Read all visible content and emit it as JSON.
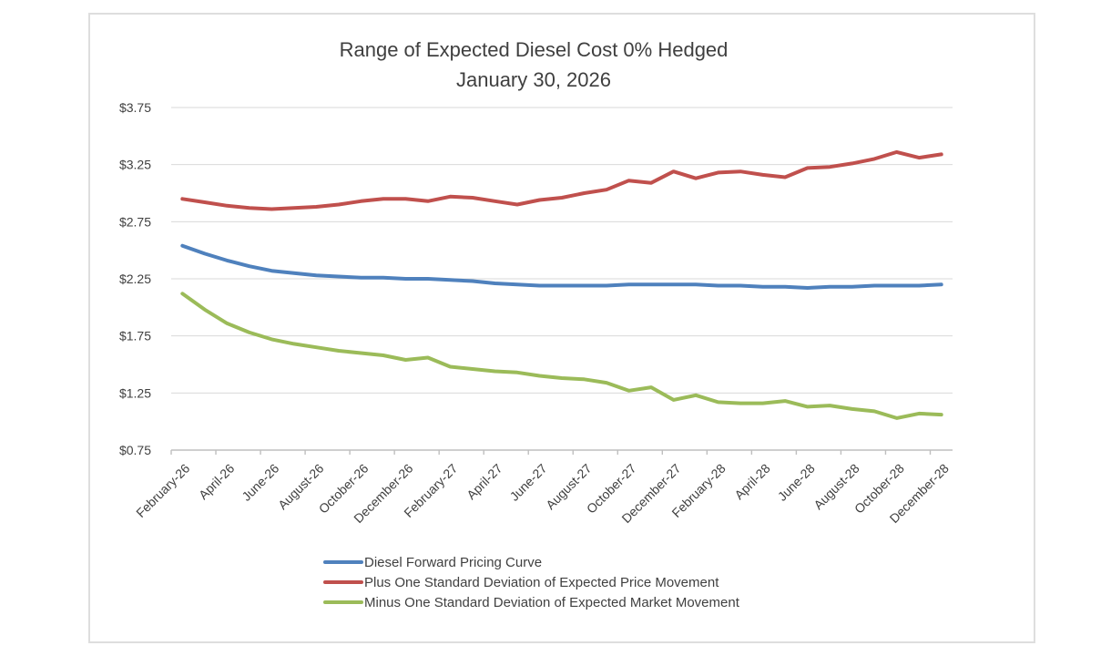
{
  "page": {
    "background_color": "#ffffff",
    "card_border_color": "#dedede"
  },
  "chart_data": {
    "type": "line",
    "title": "Range of Expected Diesel Cost 0% Hedged",
    "subtitle": "January 30, 2026",
    "grid": "horizontal",
    "legend_position": "bottom",
    "colors": {
      "grid": "#d9d9d9",
      "axis": "#bfbfbf",
      "text": "#404040"
    },
    "y_axis": {
      "tick_labels": [
        "$3.75",
        "$3.25",
        "$2.75",
        "$2.25",
        "$1.75",
        "$1.25",
        "$0.75"
      ],
      "tick_values": [
        3.75,
        3.25,
        2.75,
        2.25,
        1.75,
        1.25,
        0.75
      ],
      "min": 0.75,
      "max": 3.75
    },
    "x_axis": {
      "tick_labels": [
        "February-26",
        "April-26",
        "June-26",
        "August-26",
        "October-26",
        "December-26",
        "February-27",
        "April-27",
        "June-27",
        "August-27",
        "October-27",
        "December-27",
        "February-28",
        "April-28",
        "June-28",
        "August-28",
        "October-28",
        "December-28"
      ],
      "points_per_label": 2,
      "total_points": 35
    },
    "series": [
      {
        "name": "Diesel Forward Pricing Curve",
        "color": "#4F81BD",
        "values": [
          2.54,
          2.47,
          2.41,
          2.36,
          2.32,
          2.3,
          2.28,
          2.27,
          2.26,
          2.26,
          2.25,
          2.25,
          2.24,
          2.23,
          2.21,
          2.2,
          2.19,
          2.19,
          2.19,
          2.19,
          2.2,
          2.2,
          2.2,
          2.2,
          2.19,
          2.19,
          2.18,
          2.18,
          2.17,
          2.18,
          2.18,
          2.19,
          2.19,
          2.19,
          2.2
        ]
      },
      {
        "name": "Plus One Standard Deviation of Expected Price Movement",
        "color": "#C0504D",
        "values": [
          2.95,
          2.92,
          2.89,
          2.87,
          2.86,
          2.87,
          2.88,
          2.9,
          2.93,
          2.95,
          2.95,
          2.93,
          2.97,
          2.96,
          2.93,
          2.9,
          2.94,
          2.96,
          3.0,
          3.03,
          3.11,
          3.09,
          3.19,
          3.13,
          3.18,
          3.19,
          3.16,
          3.14,
          3.22,
          3.23,
          3.26,
          3.3,
          3.36,
          3.31,
          3.34
        ]
      },
      {
        "name": "Minus One Standard Deviation of Expected Market Movement",
        "color": "#9BBB59",
        "values": [
          2.12,
          1.98,
          1.86,
          1.78,
          1.72,
          1.68,
          1.65,
          1.62,
          1.6,
          1.58,
          1.54,
          1.56,
          1.48,
          1.46,
          1.44,
          1.43,
          1.4,
          1.38,
          1.37,
          1.34,
          1.27,
          1.3,
          1.19,
          1.23,
          1.17,
          1.16,
          1.16,
          1.18,
          1.13,
          1.14,
          1.11,
          1.09,
          1.03,
          1.07,
          1.06
        ]
      }
    ]
  }
}
